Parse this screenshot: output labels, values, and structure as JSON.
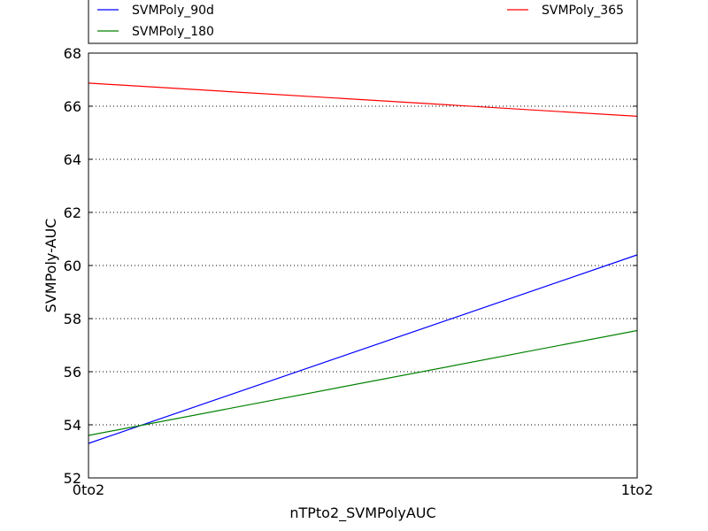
{
  "chart_data": {
    "type": "line",
    "xlabel": "nTPto2_SVMPolyAUC",
    "ylabel": "SVMPoly-AUC",
    "categories": [
      "0to2",
      "1to2"
    ],
    "ylim": [
      52,
      68
    ],
    "yticks": [
      52,
      54,
      56,
      58,
      60,
      62,
      64,
      66,
      68
    ],
    "grid": "horizontal dotted",
    "legend_position": "top",
    "series": [
      {
        "name": "SVMPoly_90d",
        "color": "#0000ff",
        "values": [
          53.3,
          60.4
        ]
      },
      {
        "name": "SVMPoly_180",
        "color": "#008000",
        "values": [
          53.6,
          57.55
        ]
      },
      {
        "name": "SVMPoly_365",
        "color": "#ff0000",
        "values": [
          66.87,
          65.62
        ]
      }
    ]
  }
}
